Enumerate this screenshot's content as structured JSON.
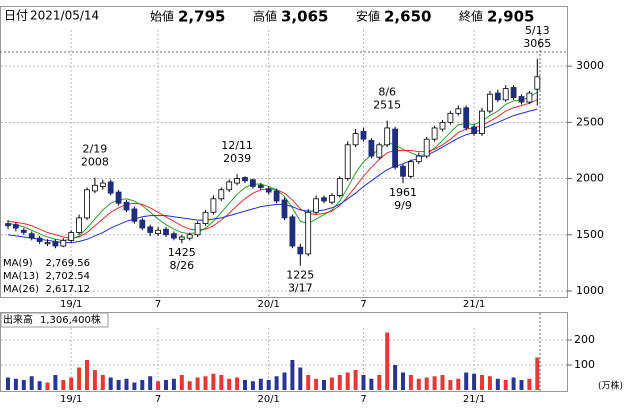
{
  "header": {
    "date_label": "日付",
    "date": "2021/05/14",
    "fields": [
      {
        "label": "始値",
        "value": "2,795",
        "color": "#000000"
      },
      {
        "label": "高値",
        "value": "3,065",
        "color": "#e02020"
      },
      {
        "label": "安値",
        "value": "2,650",
        "color": "#1a8a1a"
      },
      {
        "label": "終値",
        "value": "2,905",
        "color": "#000000"
      }
    ]
  },
  "chart_data": {
    "type": "candlestick",
    "categories": [
      null,
      null,
      null,
      null,
      null,
      null,
      null,
      null,
      "19/1",
      null,
      null,
      null,
      null,
      null,
      null,
      null,
      null,
      null,
      null,
      "7",
      null,
      null,
      null,
      null,
      null,
      null,
      null,
      null,
      null,
      null,
      null,
      null,
      null,
      "20/1",
      null,
      null,
      null,
      null,
      null,
      null,
      null,
      null,
      null,
      null,
      null,
      "7",
      null,
      null,
      null,
      null,
      null,
      null,
      null,
      null,
      null,
      null,
      null,
      null,
      null,
      "21/1",
      null,
      null,
      null,
      null,
      null,
      null,
      null,
      null
    ],
    "open": [
      1600,
      1590,
      1540,
      1510,
      1470,
      1420,
      1440,
      1400,
      1450,
      1520,
      1650,
      1890,
      1930,
      1970,
      1880,
      1790,
      1730,
      1630,
      1570,
      1510,
      1550,
      1510,
      1460,
      1470,
      1500,
      1600,
      1700,
      1820,
      1900,
      1960,
      2010,
      1990,
      1940,
      1910,
      1890,
      1810,
      1660,
      1390,
      1330,
      1700,
      1830,
      1790,
      1850,
      2000,
      2300,
      2420,
      2340,
      2190,
      2300,
      2440,
      2110,
      2020,
      2150,
      2200,
      2350,
      2440,
      2500,
      2580,
      2630,
      2460,
      2400,
      2600,
      2760,
      2700,
      2810,
      2730,
      2680,
      2795
    ],
    "high": [
      1630,
      1610,
      1560,
      1530,
      1490,
      1460,
      1460,
      1470,
      1540,
      1680,
      1920,
      2008,
      1990,
      1990,
      1900,
      1810,
      1750,
      1650,
      1590,
      1570,
      1570,
      1530,
      1500,
      1520,
      1620,
      1720,
      1850,
      1920,
      1990,
      2039,
      2020,
      2000,
      1960,
      1930,
      1910,
      1830,
      1680,
      1420,
      1730,
      1850,
      1850,
      1870,
      2020,
      2330,
      2440,
      2450,
      2360,
      2320,
      2515,
      2460,
      2130,
      2170,
      2230,
      2370,
      2470,
      2520,
      2600,
      2650,
      2650,
      2480,
      2630,
      2780,
      2790,
      2830,
      2830,
      2750,
      2780,
      3065
    ],
    "low": [
      1550,
      1530,
      1500,
      1450,
      1420,
      1400,
      1380,
      1390,
      1430,
      1500,
      1630,
      1870,
      1900,
      1850,
      1760,
      1700,
      1600,
      1540,
      1490,
      1490,
      1480,
      1450,
      1425,
      1450,
      1480,
      1580,
      1680,
      1800,
      1880,
      1940,
      1960,
      1910,
      1900,
      1860,
      1780,
      1630,
      1380,
      1225,
      1310,
      1680,
      1780,
      1770,
      1830,
      1980,
      2280,
      2330,
      2180,
      2170,
      2280,
      2080,
      1961,
      2000,
      2130,
      2180,
      2330,
      2420,
      2480,
      2560,
      2430,
      2380,
      2380,
      2580,
      2680,
      2680,
      2700,
      2660,
      2660,
      2650
    ],
    "close": [
      1580,
      1560,
      1520,
      1470,
      1440,
      1430,
      1400,
      1450,
      1520,
      1650,
      1900,
      1940,
      1960,
      1870,
      1780,
      1720,
      1620,
      1560,
      1520,
      1540,
      1500,
      1470,
      1480,
      1500,
      1600,
      1700,
      1820,
      1900,
      1970,
      2000,
      1980,
      1930,
      1920,
      1880,
      1800,
      1650,
      1400,
      1330,
      1700,
      1820,
      1800,
      1850,
      2000,
      2300,
      2400,
      2350,
      2200,
      2300,
      2450,
      2100,
      2020,
      2150,
      2200,
      2350,
      2450,
      2500,
      2580,
      2620,
      2450,
      2400,
      2600,
      2750,
      2700,
      2800,
      2720,
      2680,
      2760,
      2905
    ],
    "up_color": "#ffffff",
    "down_color": "#1f2d7a",
    "ma": [
      {
        "name": "MA(9)",
        "color": "#2e9e2e",
        "last_value_label": "2,769.56",
        "values": [
          1600,
          1590,
          1570,
          1540,
          1510,
          1480,
          1460,
          1450,
          1460,
          1490,
          1560,
          1640,
          1720,
          1780,
          1810,
          1820,
          1800,
          1760,
          1700,
          1640,
          1590,
          1550,
          1520,
          1510,
          1520,
          1560,
          1620,
          1700,
          1780,
          1860,
          1920,
          1950,
          1950,
          1930,
          1900,
          1840,
          1740,
          1620,
          1600,
          1640,
          1680,
          1720,
          1800,
          1920,
          2050,
          2150,
          2210,
          2260,
          2320,
          2300,
          2260,
          2230,
          2200,
          2220,
          2270,
          2340,
          2410,
          2480,
          2490,
          2480,
          2510,
          2560,
          2600,
          2660,
          2690,
          2700,
          2720,
          2769.56
        ]
      },
      {
        "name": "MA(13)",
        "color": "#e03030",
        "last_value_label": "2,702.54",
        "values": [
          1620,
          1610,
          1600,
          1580,
          1550,
          1520,
          1500,
          1480,
          1470,
          1480,
          1520,
          1580,
          1640,
          1700,
          1740,
          1770,
          1780,
          1770,
          1740,
          1700,
          1660,
          1620,
          1580,
          1550,
          1540,
          1550,
          1580,
          1630,
          1690,
          1760,
          1820,
          1870,
          1900,
          1910,
          1900,
          1870,
          1810,
          1730,
          1690,
          1680,
          1690,
          1710,
          1760,
          1840,
          1930,
          2020,
          2100,
          2170,
          2230,
          2250,
          2250,
          2250,
          2240,
          2240,
          2260,
          2300,
          2350,
          2410,
          2440,
          2450,
          2470,
          2510,
          2550,
          2600,
          2630,
          2650,
          2670,
          2702.54
        ]
      },
      {
        "name": "MA(26)",
        "color": "#2233cc",
        "last_value_label": "2,617.12",
        "values": [
          1500,
          1490,
          1480,
          1470,
          1460,
          1450,
          1440,
          1430,
          1430,
          1440,
          1460,
          1490,
          1520,
          1560,
          1590,
          1620,
          1640,
          1660,
          1670,
          1670,
          1670,
          1660,
          1650,
          1640,
          1630,
          1630,
          1640,
          1650,
          1670,
          1690,
          1710,
          1730,
          1750,
          1760,
          1770,
          1770,
          1750,
          1720,
          1710,
          1710,
          1720,
          1740,
          1770,
          1820,
          1870,
          1930,
          1980,
          2030,
          2080,
          2110,
          2130,
          2160,
          2180,
          2210,
          2240,
          2280,
          2320,
          2360,
          2390,
          2410,
          2440,
          2470,
          2500,
          2530,
          2560,
          2580,
          2600,
          2617.12
        ]
      }
    ],
    "ylim": [
      940,
      3330
    ],
    "yticks": [
      1000,
      1500,
      2000,
      2500,
      3000
    ],
    "grid": true,
    "annotations": [
      {
        "date": "2/19",
        "price": 2008
      },
      {
        "date": "12/11",
        "price": 2039
      },
      {
        "date": "8/6",
        "price": 2515
      },
      {
        "date": "5/13",
        "price": 3065
      },
      {
        "date": "8/26",
        "price": 1425
      },
      {
        "date": "3/17",
        "price": 1225
      },
      {
        "date": "9/9",
        "price": 1961
      }
    ],
    "volume": {
      "label": "出来高",
      "current": "1,306,400株",
      "unit": "(万株)",
      "up_color": "#e53935",
      "down_color": "#283593",
      "values": [
        50,
        45,
        40,
        55,
        35,
        30,
        60,
        40,
        50,
        90,
        120,
        80,
        60,
        50,
        40,
        45,
        30,
        40,
        55,
        35,
        40,
        45,
        60,
        35,
        50,
        55,
        65,
        60,
        45,
        50,
        40,
        35,
        45,
        40,
        55,
        70,
        120,
        90,
        60,
        45,
        40,
        50,
        60,
        70,
        80,
        60,
        45,
        60,
        230,
        100,
        70,
        60,
        45,
        50,
        55,
        60,
        40,
        45,
        70,
        65,
        60,
        55,
        45,
        40,
        50,
        40,
        45,
        130
      ],
      "ylim": [
        0,
        240
      ],
      "yticks": [
        100,
        200
      ]
    }
  }
}
